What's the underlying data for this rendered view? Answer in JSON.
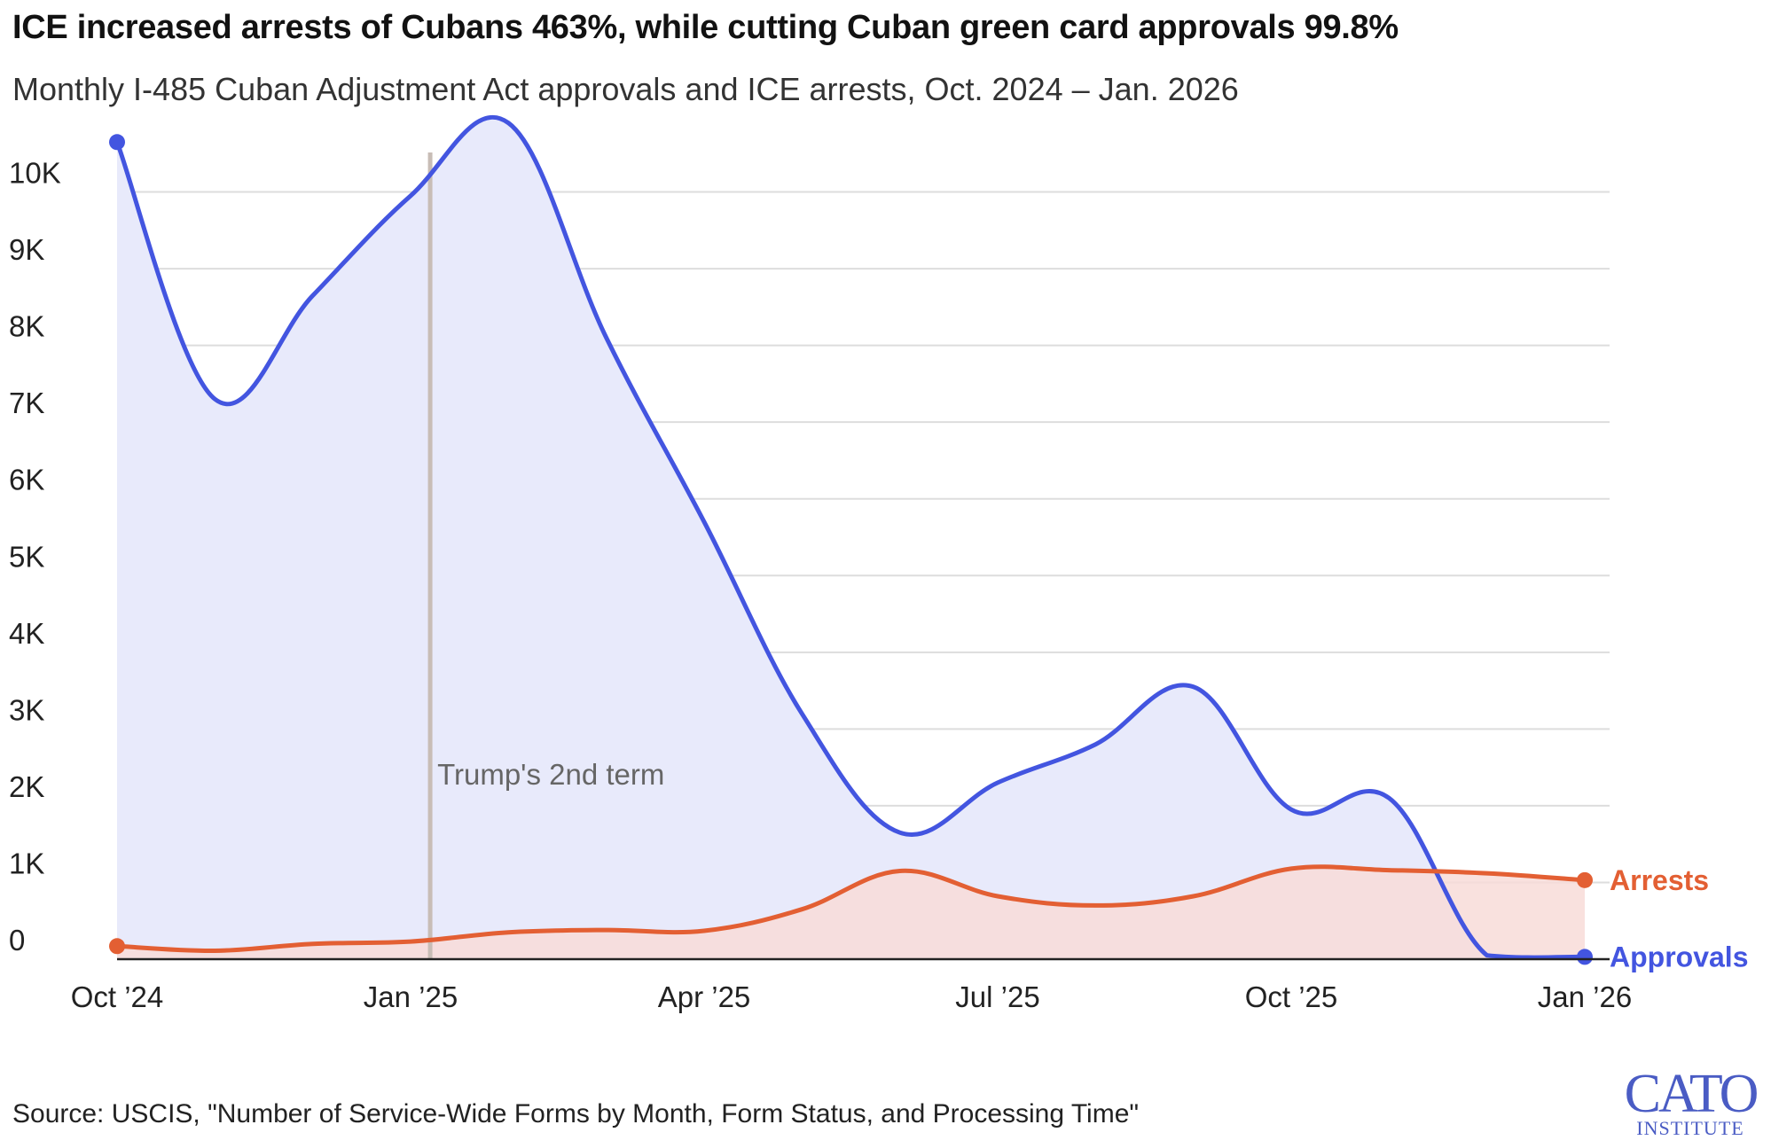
{
  "header": {
    "title": "ICE increased arrests of Cubans 463%, while cutting Cuban green card approvals 99.8%",
    "subtitle": "Monthly I-485 Cuban Adjustment Act approvals and ICE arrests, Oct. 2024 – Jan. 2026"
  },
  "footer": {
    "source": "Source: USCIS, \"Number of Service-Wide Forms by Month, Form Status, and Processing Time\"",
    "logo_text_top": "CATO",
    "logo_text_bottom": "INSTITUTE"
  },
  "colors": {
    "approvals": "#4355e0",
    "approvals_fill": "#e8eafb",
    "arrests": "#e35f33",
    "arrests_fill": "#f8dcd8",
    "term_line": "#c8bdb6",
    "grid": "#dddddd",
    "logo": "#4a5cc4"
  },
  "chart_data": {
    "type": "area",
    "x": [
      "Oct 2024",
      "Nov 2024",
      "Dec 2024",
      "Jan 2025",
      "Feb 2025",
      "Mar 2025",
      "Apr 2025",
      "May 2025",
      "Jun 2025",
      "Jul 2025",
      "Aug 2025",
      "Sep 2025",
      "Oct 2025",
      "Nov 2025",
      "Dec 2025",
      "Jan 2026"
    ],
    "x_ticks": [
      {
        "index": 0,
        "label": "Oct ’24"
      },
      {
        "index": 3,
        "label": "Jan ’25"
      },
      {
        "index": 6,
        "label": "Apr ’25"
      },
      {
        "index": 9,
        "label": "Jul ’25"
      },
      {
        "index": 12,
        "label": "Oct ’25"
      },
      {
        "index": 15,
        "label": "Jan ’26"
      }
    ],
    "y_ticks": [
      {
        "value": 0,
        "label": "0"
      },
      {
        "value": 1000,
        "label": "1K"
      },
      {
        "value": 2000,
        "label": "2K"
      },
      {
        "value": 3000,
        "label": "3K"
      },
      {
        "value": 4000,
        "label": "4K"
      },
      {
        "value": 5000,
        "label": "5K"
      },
      {
        "value": 6000,
        "label": "6K"
      },
      {
        "value": 7000,
        "label": "7K"
      },
      {
        "value": 8000,
        "label": "8K"
      },
      {
        "value": 9000,
        "label": "9K"
      },
      {
        "value": 10000,
        "label": "10K"
      }
    ],
    "ylim": [
      0,
      11000
    ],
    "series": [
      {
        "name": "Approvals",
        "key": "approvals",
        "values": [
          10650,
          7300,
          8650,
          9950,
          10900,
          8100,
          5700,
          3200,
          1650,
          2300,
          2800,
          3550,
          1950,
          2100,
          50,
          30
        ]
      },
      {
        "name": "Arrests",
        "key": "arrests",
        "values": [
          170,
          110,
          200,
          230,
          350,
          380,
          370,
          650,
          1150,
          820,
          700,
          820,
          1180,
          1160,
          1120,
          1030
        ]
      }
    ],
    "annotations": [
      {
        "label": "Trump's 2nd term",
        "x": "Jan 20, 2025",
        "x_index": 3.2
      }
    ],
    "grid": true,
    "legend": "direct labels at line ends"
  }
}
